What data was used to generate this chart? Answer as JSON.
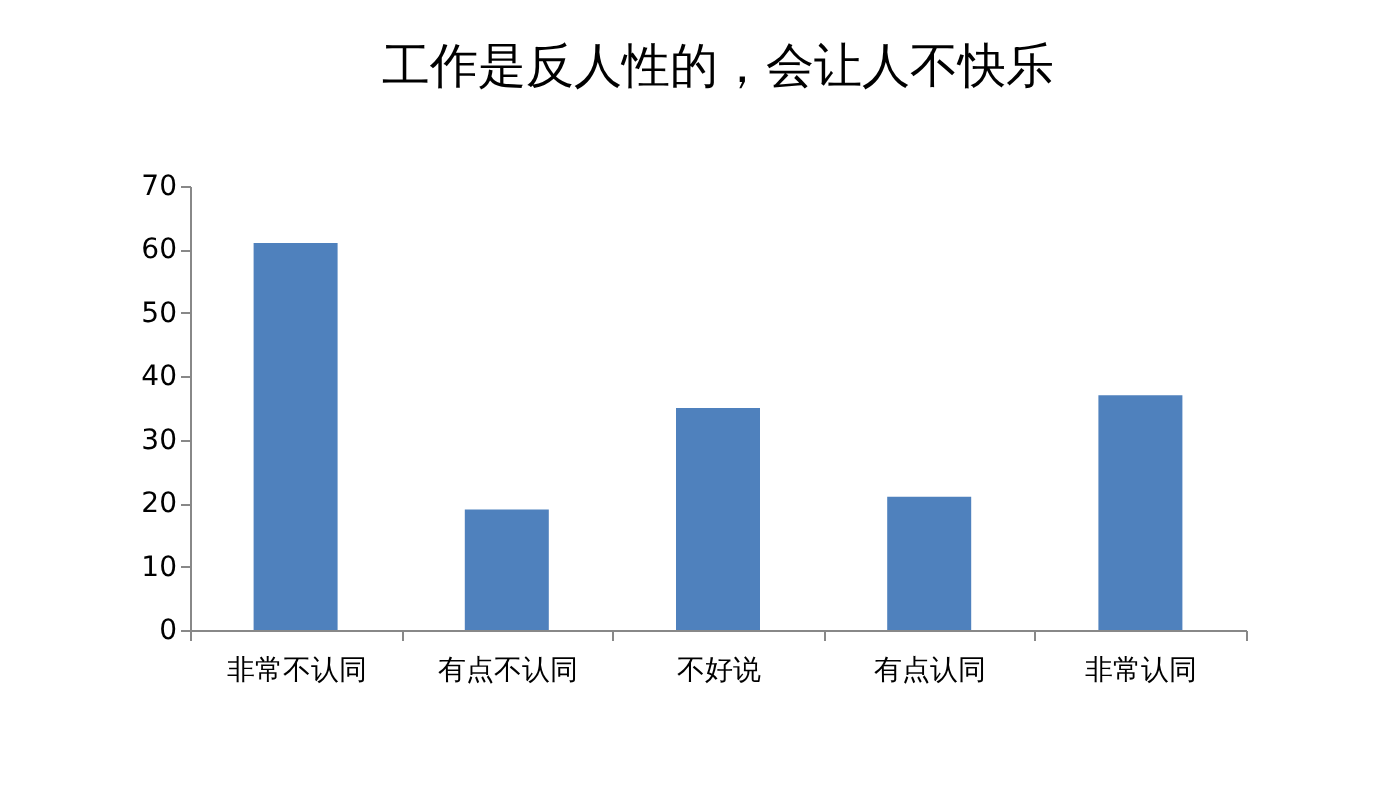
{
  "chart_data": {
    "type": "bar",
    "title": "工作是反人性的，会让人不快乐",
    "categories": [
      "非常不认同",
      "有点不认同",
      "不好说",
      "有点认同",
      "非常认同"
    ],
    "values": [
      61,
      19,
      35,
      21,
      37
    ],
    "color": "#4f81bd",
    "ylim": [
      0,
      70
    ],
    "yticks": [
      0,
      10,
      20,
      30,
      40,
      50,
      60,
      70
    ],
    "grid": false
  }
}
